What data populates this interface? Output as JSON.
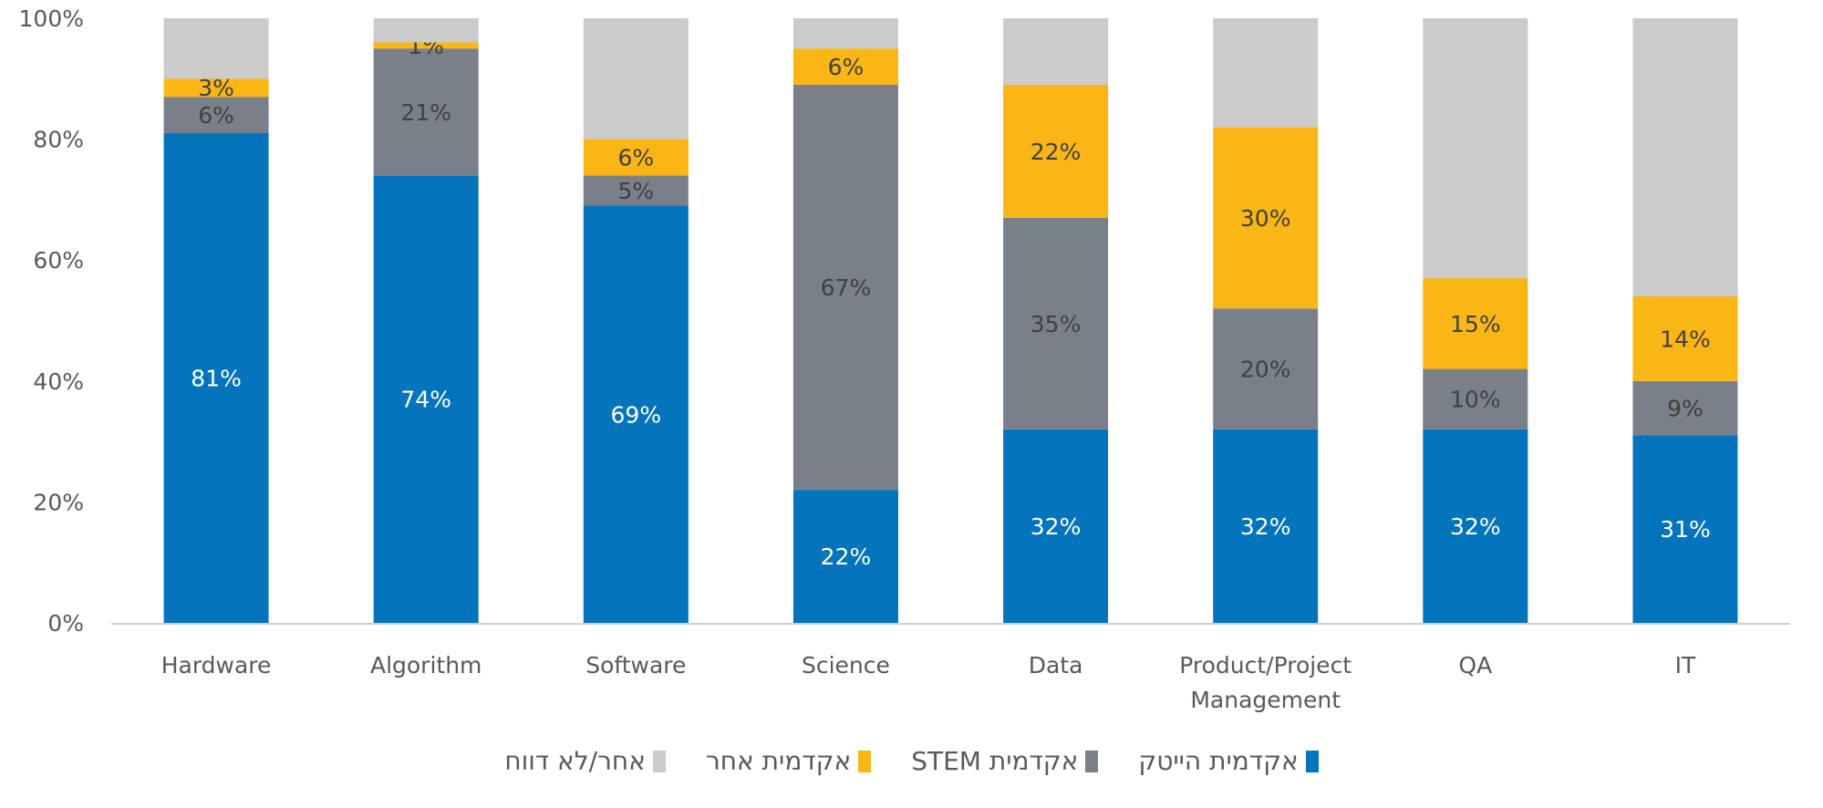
{
  "chart_data": {
    "type": "bar",
    "stacked": true,
    "percent": true,
    "title": "",
    "xlabel": "",
    "ylabel": "",
    "ylim": [
      0,
      100
    ],
    "yticks": [
      "0%",
      "20%",
      "40%",
      "60%",
      "80%",
      "100%"
    ],
    "grid": false,
    "legend_position": "bottom",
    "categories": [
      "Hardware",
      "Algorithm",
      "Software",
      "Science",
      "Data",
      "Product/Project\nManagement",
      "QA",
      "IT"
    ],
    "series": [
      {
        "name": "אקדמית הייטק",
        "color": "#0474bc",
        "label_color": "#ffffff",
        "values": [
          81,
          74,
          69,
          22,
          32,
          32,
          32,
          31
        ]
      },
      {
        "name": "אקדמית STEM",
        "color": "#7a808a",
        "label_color": "#404040",
        "values": [
          6,
          21,
          5,
          67,
          35,
          20,
          10,
          9
        ]
      },
      {
        "name": "אקדמית אחר",
        "color": "#f9b614",
        "label_color": "#404040",
        "values": [
          3,
          1,
          6,
          6,
          22,
          30,
          15,
          14
        ]
      },
      {
        "name": "אחר/לא דווח",
        "color": "#cbcbcb",
        "label_color": null,
        "values": [
          10,
          4,
          20,
          5,
          11,
          18,
          43,
          46
        ]
      }
    ],
    "labeled_series": [
      0,
      1,
      2
    ]
  },
  "legend": {
    "items": [
      {
        "label": "אקדמית הייטק",
        "color": "#0474bc"
      },
      {
        "label": "אקדמית STEM",
        "color": "#7a808a"
      },
      {
        "label": "אקדמית אחר",
        "color": "#f9b614"
      },
      {
        "label": "אחר/לא דווח",
        "color": "#cbcbcb"
      }
    ]
  }
}
